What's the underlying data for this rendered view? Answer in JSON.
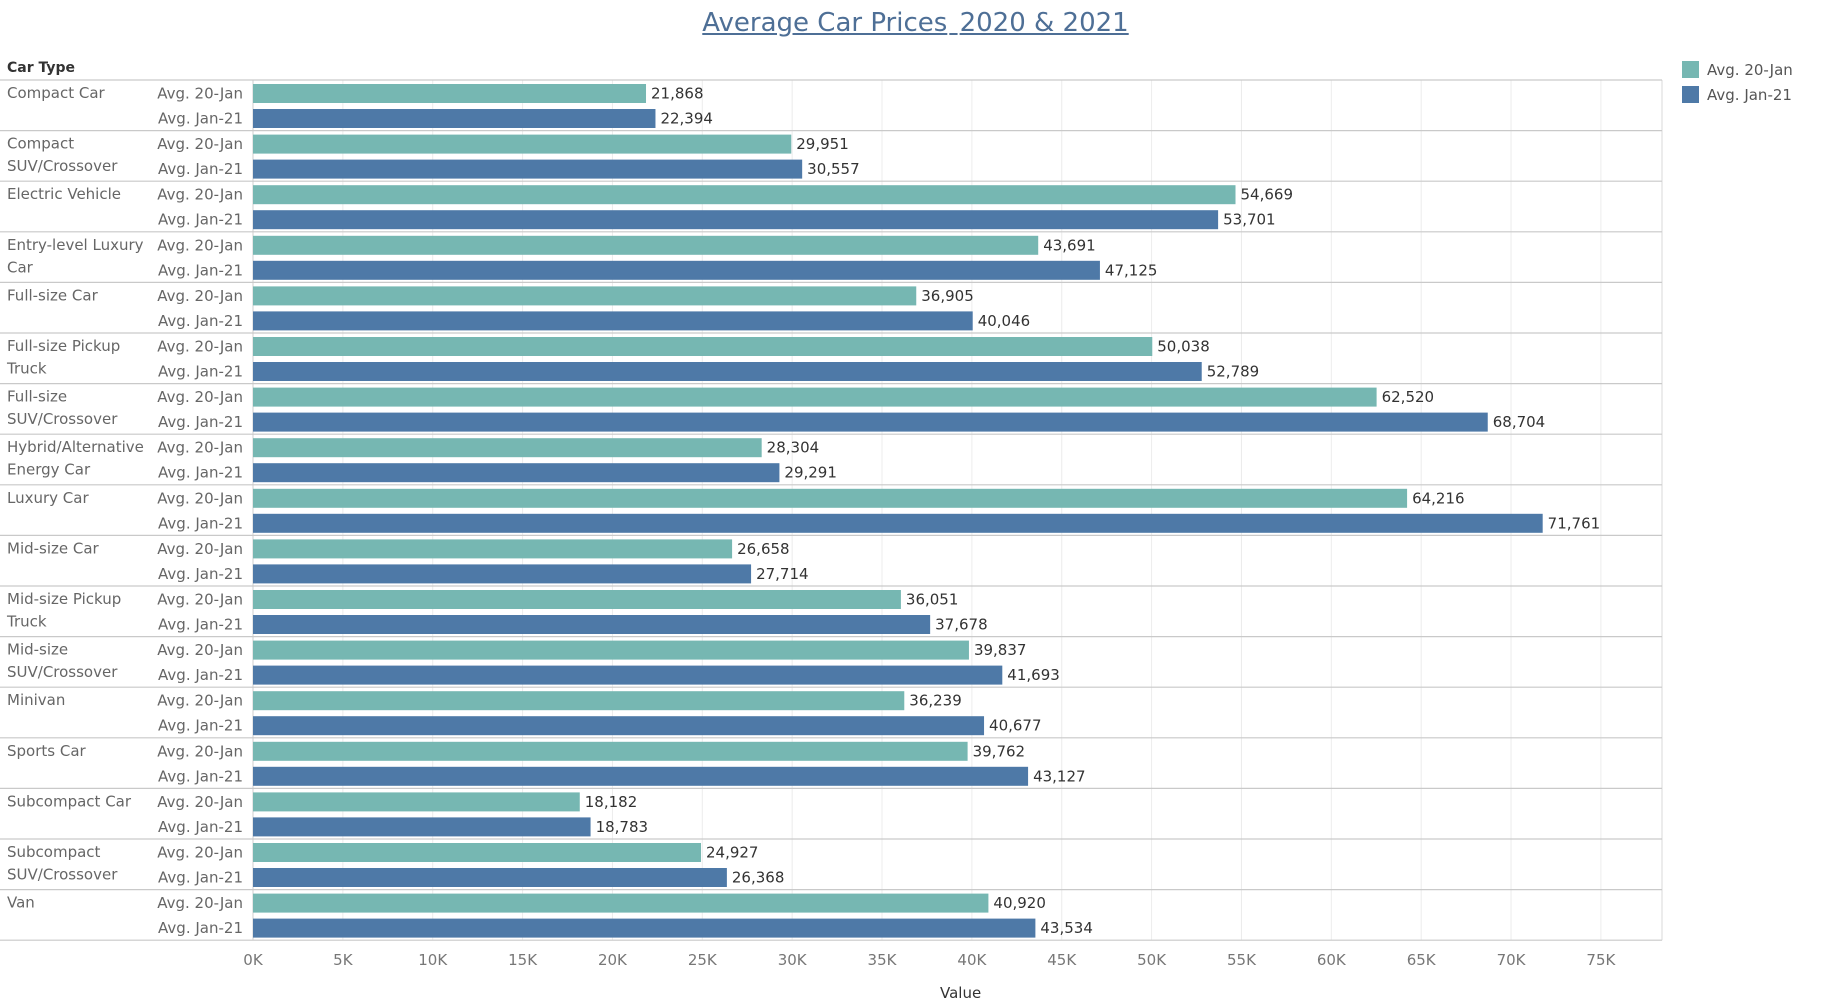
{
  "chart_data": {
    "type": "bar",
    "orientation": "horizontal",
    "title_parts": [
      "Average Car Prices",
      "2020 & 2021"
    ],
    "row_header": "Car Type",
    "xlabel": "Value",
    "xlim": [
      0,
      78400
    ],
    "ticks": [
      {
        "value": 0,
        "label": "0K"
      },
      {
        "value": 5000,
        "label": "5K"
      },
      {
        "value": 10000,
        "label": "10K"
      },
      {
        "value": 15000,
        "label": "15K"
      },
      {
        "value": 20000,
        "label": "20K"
      },
      {
        "value": 25000,
        "label": "25K"
      },
      {
        "value": 30000,
        "label": "30K"
      },
      {
        "value": 35000,
        "label": "35K"
      },
      {
        "value": 40000,
        "label": "40K"
      },
      {
        "value": 45000,
        "label": "45K"
      },
      {
        "value": 50000,
        "label": "50K"
      },
      {
        "value": 55000,
        "label": "55K"
      },
      {
        "value": 60000,
        "label": "60K"
      },
      {
        "value": 65000,
        "label": "65K"
      },
      {
        "value": 70000,
        "label": "70K"
      },
      {
        "value": 75000,
        "label": "75K"
      }
    ],
    "series": [
      {
        "name": "Avg. 20-Jan",
        "color": "#76b7b2"
      },
      {
        "name": "Avg. Jan-21",
        "color": "#4e79a7"
      }
    ],
    "categories": [
      {
        "name": [
          "Compact Car"
        ],
        "values": [
          21868,
          22394
        ],
        "labels": [
          "21,868",
          "22,394"
        ]
      },
      {
        "name": [
          "Compact",
          "SUV/Crossover"
        ],
        "values": [
          29951,
          30557
        ],
        "labels": [
          "29,951",
          "30,557"
        ]
      },
      {
        "name": [
          "Electric Vehicle"
        ],
        "values": [
          54669,
          53701
        ],
        "labels": [
          "54,669",
          "53,701"
        ]
      },
      {
        "name": [
          "Entry-level Luxury",
          "Car"
        ],
        "values": [
          43691,
          47125
        ],
        "labels": [
          "43,691",
          "47,125"
        ]
      },
      {
        "name": [
          "Full-size Car"
        ],
        "values": [
          36905,
          40046
        ],
        "labels": [
          "36,905",
          "40,046"
        ]
      },
      {
        "name": [
          "Full-size Pickup",
          "Truck"
        ],
        "values": [
          50038,
          52789
        ],
        "labels": [
          "50,038",
          "52,789"
        ]
      },
      {
        "name": [
          "Full-size",
          "SUV/Crossover"
        ],
        "values": [
          62520,
          68704
        ],
        "labels": [
          "62,520",
          "68,704"
        ]
      },
      {
        "name": [
          "Hybrid/Alternative",
          "Energy Car"
        ],
        "values": [
          28304,
          29291
        ],
        "labels": [
          "28,304",
          "29,291"
        ]
      },
      {
        "name": [
          "Luxury Car"
        ],
        "values": [
          64216,
          71761
        ],
        "labels": [
          "64,216",
          "71,761"
        ]
      },
      {
        "name": [
          "Mid-size Car"
        ],
        "values": [
          26658,
          27714
        ],
        "labels": [
          "26,658",
          "27,714"
        ]
      },
      {
        "name": [
          "Mid-size Pickup",
          "Truck"
        ],
        "values": [
          36051,
          37678
        ],
        "labels": [
          "36,051",
          "37,678"
        ]
      },
      {
        "name": [
          "Mid-size",
          "SUV/Crossover"
        ],
        "values": [
          39837,
          41693
        ],
        "labels": [
          "39,837",
          "41,693"
        ]
      },
      {
        "name": [
          "Minivan"
        ],
        "values": [
          36239,
          40677
        ],
        "labels": [
          "36,239",
          "40,677"
        ]
      },
      {
        "name": [
          "Sports Car"
        ],
        "values": [
          39762,
          43127
        ],
        "labels": [
          "39,762",
          "43,127"
        ]
      },
      {
        "name": [
          "Subcompact Car"
        ],
        "values": [
          18182,
          18783
        ],
        "labels": [
          "18,182",
          "18,783"
        ]
      },
      {
        "name": [
          "Subcompact",
          "SUV/Crossover"
        ],
        "values": [
          24927,
          26368
        ],
        "labels": [
          "24,927",
          "26,368"
        ]
      },
      {
        "name": [
          "Van"
        ],
        "values": [
          40920,
          43534
        ],
        "labels": [
          "40,920",
          "43,534"
        ]
      }
    ]
  }
}
